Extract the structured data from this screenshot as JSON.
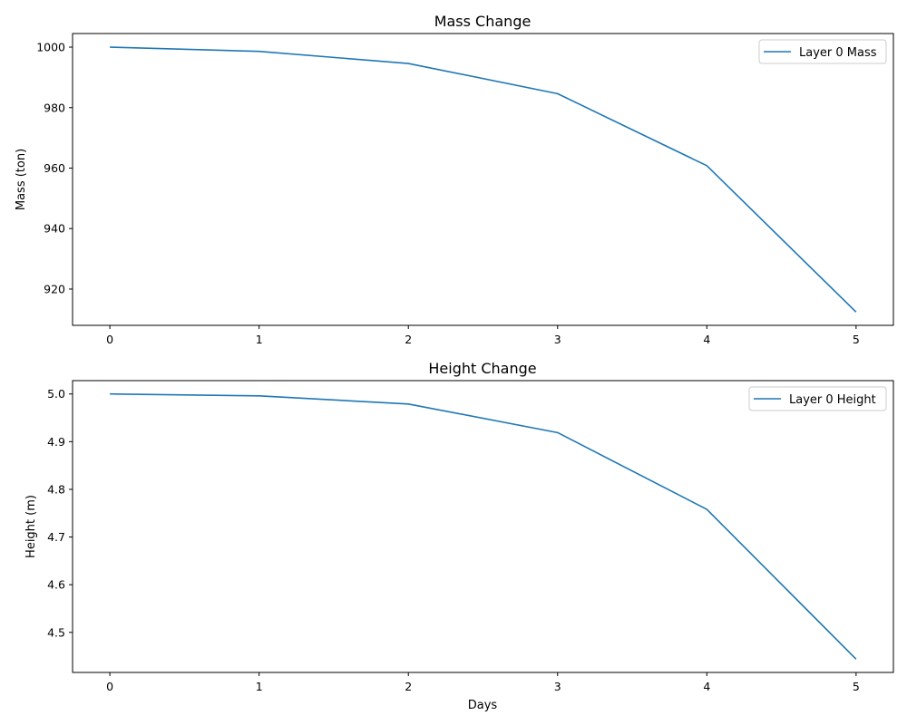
{
  "chart_data": [
    {
      "type": "line",
      "title": "Mass Change",
      "xlabel": "",
      "ylabel": "Mass (ton)",
      "x": [
        0,
        1,
        2,
        3,
        4,
        5
      ],
      "x_ticks": [
        "0",
        "1",
        "2",
        "3",
        "4",
        "5"
      ],
      "y_ticks": [
        "920",
        "940",
        "960",
        "980",
        "1000"
      ],
      "ylim": [
        908.0,
        1004.5
      ],
      "xlim": [
        -0.25,
        5.25
      ],
      "grid": false,
      "legend_position": "top-right",
      "series": [
        {
          "name": "Layer 0 Mass",
          "color": "#1f77b4",
          "values": [
            1000.0,
            998.6,
            994.6,
            984.6,
            960.8,
            912.4
          ]
        }
      ]
    },
    {
      "type": "line",
      "title": "Height Change",
      "xlabel": "Days",
      "ylabel": "Height (m)",
      "x": [
        0,
        1,
        2,
        3,
        4,
        5
      ],
      "x_ticks": [
        "0",
        "1",
        "2",
        "3",
        "4",
        "5"
      ],
      "y_ticks": [
        "4.5",
        "4.6",
        "4.7",
        "4.8",
        "4.9",
        "5.0"
      ],
      "ylim": [
        4.416,
        5.028
      ],
      "xlim": [
        -0.25,
        5.25
      ],
      "grid": false,
      "legend_position": "top-right",
      "series": [
        {
          "name": "Layer 0 Height",
          "color": "#1f77b4",
          "values": [
            5.0,
            4.996,
            4.979,
            4.919,
            4.758,
            4.444
          ]
        }
      ]
    }
  ]
}
